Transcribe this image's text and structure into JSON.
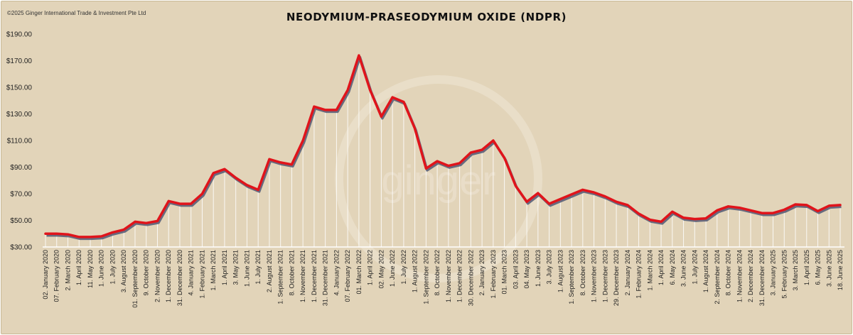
{
  "copyright": "©2025 Ginger International Trade & Investment Pte Ltd",
  "watermark": "ginger",
  "colors": {
    "background": "#e2d4b9",
    "line": "#e0141b",
    "shadow": "#5a5e78",
    "drop": "#ffffff"
  },
  "chart_data": {
    "type": "line",
    "title": "NEODYMIUM-PRASEODYMIUM OXIDE (NDPR)",
    "xlabel": "",
    "ylabel": "",
    "ylim": [
      30,
      190
    ],
    "yticks": [
      "$30.00",
      "$50.00",
      "$70.00",
      "$90.00",
      "$110.00",
      "$130.00",
      "$150.00",
      "$170.00",
      "$190.00"
    ],
    "grid": false,
    "legend": "none",
    "categories": [
      "02. January 2020",
      "07. February 2020",
      "2. March 2020",
      "1. April 2020",
      "11. May 2020",
      "1. June 2020",
      "1. July 2020",
      "3. August 2020",
      "01. September 2020",
      "9. October 2020",
      "2. November 2020",
      "1. December 2020",
      "31. December 2020",
      "4. January 2021",
      "1. February 2021",
      "1. March 2021",
      "1. April 2021",
      "3. May 2021",
      "1. June 2021",
      "1. July 2021",
      "2. August 2021",
      "1. September 2021",
      "8. October 2021",
      "1. November 2021",
      "1. December 2021",
      "31. December 2021",
      "4. January 2022",
      "07. February 2022",
      "01. March 2022",
      "1. April 2022",
      "02. May 2022",
      "1. June 2022",
      "1. July 2022",
      "1. August 2022",
      "1. September 2022",
      "8. October 2022",
      "1. November 2022",
      "1. December 2022",
      "30. December 2022",
      "2. January 2023",
      "1. February 2023",
      "01. March 2023",
      "03. April 2023",
      "04. May 2023",
      "1. June 2023",
      "3. July 2023",
      "1. August 2023",
      "1. September 2023",
      "8. October 2023",
      "1. November 2023",
      "1. December 2023",
      "29. December 2023",
      "2. January 2024",
      "1. February 2024",
      "1. March 2024",
      "1. April 2024",
      "6. May 2024",
      "3. June 2024",
      "1. July 2024",
      "1. August 2024",
      "2. September 2024",
      "8. October 2024",
      "1. November 2024",
      "2. December 2024",
      "31. December 2024",
      "3. January 2025",
      "5. February 2025",
      "3. March 2025",
      "1. April 2025",
      "6. May 2025",
      "3. June 2025",
      "18. June 2025"
    ],
    "series": [
      {
        "values": [
          40,
          40,
          39.5,
          37.5,
          37.5,
          38,
          41,
          43,
          49,
          48,
          49.5,
          64.5,
          62.5,
          62.5,
          70,
          85.5,
          88.5,
          82,
          76.5,
          73,
          96,
          93.5,
          92,
          110,
          135.5,
          133,
          133,
          148,
          174,
          148,
          128,
          142.5,
          139,
          119,
          89,
          94.5,
          91,
          93,
          101,
          103,
          110,
          97,
          76,
          64,
          70.5,
          62.5,
          66,
          69.5,
          73,
          71,
          68,
          64,
          61.5,
          55,
          50.5,
          49,
          56.5,
          52,
          51,
          51.5,
          57.5,
          60.5,
          59.5,
          57.5,
          55.5,
          55.5,
          58,
          62,
          61.5,
          57,
          61,
          61.5
        ]
      }
    ]
  }
}
